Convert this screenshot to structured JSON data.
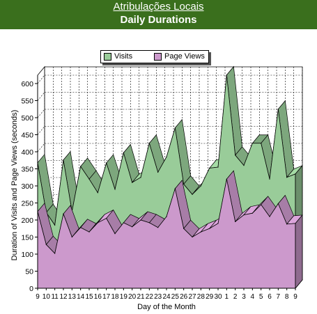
{
  "header": {
    "site_title": "Atribulações Locais",
    "page_title": "Daily Durations"
  },
  "chart_data": {
    "type": "area",
    "xlabel": "Day of the Month",
    "ylabel": "Duration of Visits and Page Views (seconds)",
    "ylim": [
      0,
      600
    ],
    "yticks": [
      0,
      50,
      100,
      150,
      200,
      250,
      300,
      350,
      400,
      450,
      500,
      550,
      600
    ],
    "grid": true,
    "legend_position": "top-center",
    "categories": [
      "9",
      "10",
      "11",
      "12",
      "13",
      "14",
      "15",
      "16",
      "17",
      "18",
      "19",
      "20",
      "21",
      "22",
      "23",
      "24",
      "25",
      "26",
      "27",
      "28",
      "29",
      "30",
      "1",
      "2",
      "3",
      "4",
      "5",
      "6",
      "7",
      "8",
      "9"
    ],
    "series": [
      {
        "name": "Visits",
        "color": "#99cc99",
        "values": [
          368,
          222,
          185,
          376,
          225,
          357,
          320,
          280,
          367,
          290,
          397,
          310,
          325,
          425,
          340,
          385,
          470,
          305,
          275,
          300,
          352,
          355,
          625,
          390,
          360,
          425,
          425,
          320,
          525,
          325,
          335
        ]
      },
      {
        "name": "Page Views",
        "color": "#cc99cc",
        "values": [
          225,
          128,
          102,
          218,
          150,
          178,
          165,
          192,
          205,
          160,
          192,
          180,
          200,
          192,
          178,
          210,
          292,
          175,
          150,
          165,
          175,
          190,
          320,
          195,
          215,
          220,
          245,
          210,
          248,
          188,
          190
        ]
      }
    ]
  }
}
